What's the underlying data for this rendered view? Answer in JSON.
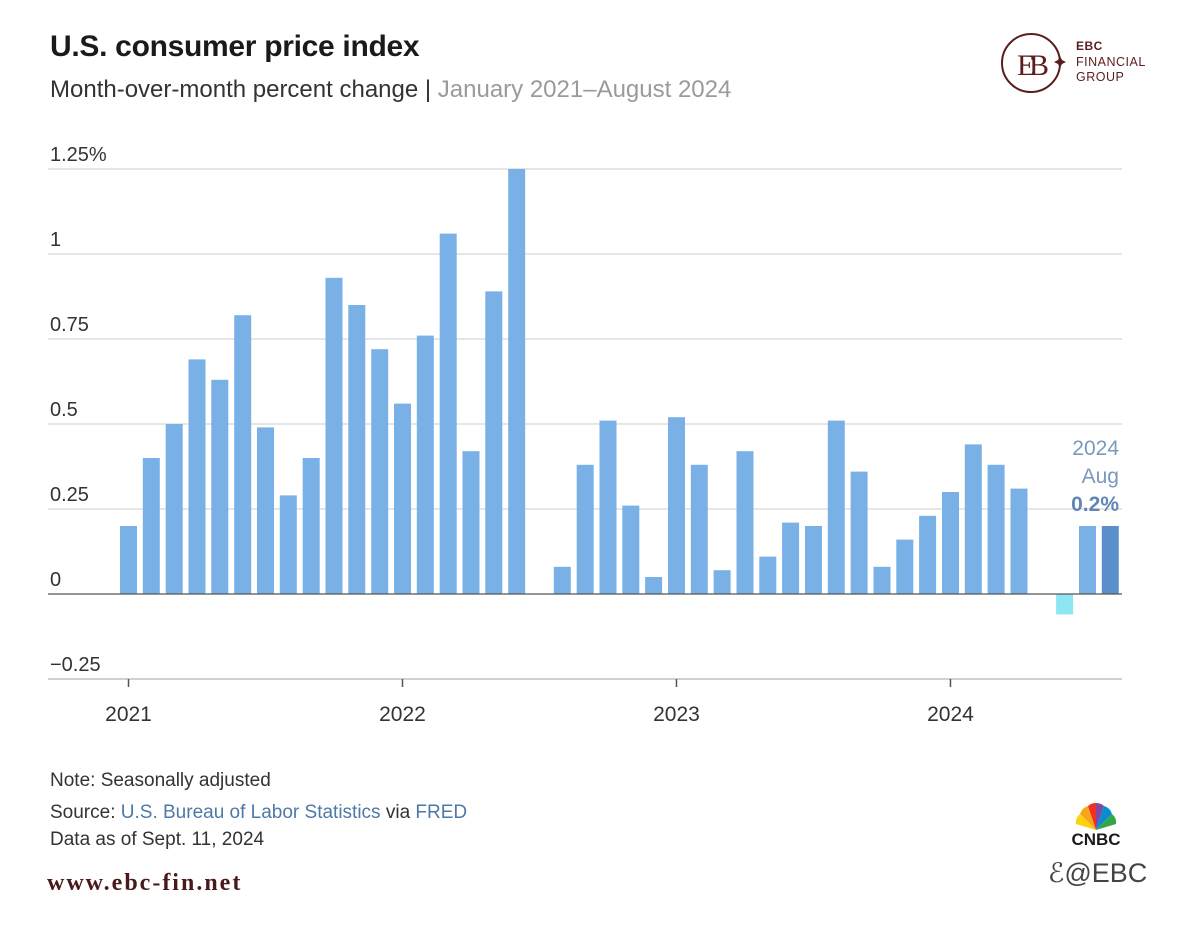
{
  "header": {
    "title": "U.S. consumer price index",
    "subtitle_main": "Month-over-month percent change | ",
    "subtitle_range": "January 2021–August 2024"
  },
  "brand": {
    "line1": "EBC",
    "line2": "FINANCIAL",
    "line3": "GROUP",
    "color": "#5a1e1e"
  },
  "chart_data": {
    "type": "bar",
    "title": "U.S. consumer price index",
    "subtitle": "Month-over-month percent change | January 2021–August 2024",
    "xlabel": "",
    "ylabel": "",
    "ylim": [
      -0.25,
      1.25
    ],
    "grid": true,
    "y_ticks": [
      {
        "value": 1.25,
        "label": "1.25%"
      },
      {
        "value": 1,
        "label": "1"
      },
      {
        "value": 0.75,
        "label": "0.75"
      },
      {
        "value": 0.5,
        "label": "0.5"
      },
      {
        "value": 0.25,
        "label": "0.25"
      },
      {
        "value": 0,
        "label": "0"
      },
      {
        "value": -0.25,
        "label": "−0.25"
      }
    ],
    "x_ticks": [
      {
        "index": 0,
        "label": "2021"
      },
      {
        "index": 12,
        "label": "2022"
      },
      {
        "index": 24,
        "label": "2023"
      },
      {
        "index": 36,
        "label": "2024"
      }
    ],
    "categories": [
      "Jan 2021",
      "Feb 2021",
      "Mar 2021",
      "Apr 2021",
      "May 2021",
      "Jun 2021",
      "Jul 2021",
      "Aug 2021",
      "Sep 2021",
      "Oct 2021",
      "Nov 2021",
      "Dec 2021",
      "Jan 2022",
      "Feb 2022",
      "Mar 2022",
      "Apr 2022",
      "May 2022",
      "Jun 2022",
      "Jul 2022",
      "Aug 2022",
      "Sep 2022",
      "Oct 2022",
      "Nov 2022",
      "Dec 2022",
      "Jan 2023",
      "Feb 2023",
      "Mar 2023",
      "Apr 2023",
      "May 2023",
      "Jun 2023",
      "Jul 2023",
      "Aug 2023",
      "Sep 2023",
      "Oct 2023",
      "Nov 2023",
      "Dec 2023",
      "Jan 2024",
      "Feb 2024",
      "Mar 2024",
      "Apr 2024",
      "May 2024",
      "Jun 2024",
      "Jul 2024",
      "Aug 2024"
    ],
    "values": [
      0.2,
      0.4,
      0.5,
      0.69,
      0.63,
      0.82,
      0.49,
      0.29,
      0.4,
      0.93,
      0.85,
      0.72,
      0.56,
      0.76,
      1.06,
      0.42,
      0.89,
      1.25,
      0.0,
      0.08,
      0.38,
      0.51,
      0.26,
      0.05,
      0.52,
      0.38,
      0.07,
      0.42,
      0.11,
      0.21,
      0.2,
      0.51,
      0.36,
      0.08,
      0.16,
      0.23,
      0.3,
      0.44,
      0.38,
      0.31,
      0.0,
      -0.06,
      0.2,
      0.2
    ],
    "colors": {
      "bar": "#79b1e6",
      "negative": "#8ee6f2",
      "highlight": "#5b8fca",
      "grid": "#d6d6d6",
      "axis": "#555555"
    },
    "annotation": {
      "year": "2024",
      "month": "Aug",
      "value": "0.2%"
    }
  },
  "footer": {
    "note": "Note: Seasonally adjusted",
    "source_prefix": "Source: ",
    "source_link1": "U.S. Bureau of Labor Statistics",
    "source_mid": " via ",
    "source_link2": "FRED",
    "date": "Data as of Sept. 11, 2024",
    "website": "www.ebc-fin.net",
    "cnbc": "CNBC",
    "watermark": "@EBC"
  }
}
